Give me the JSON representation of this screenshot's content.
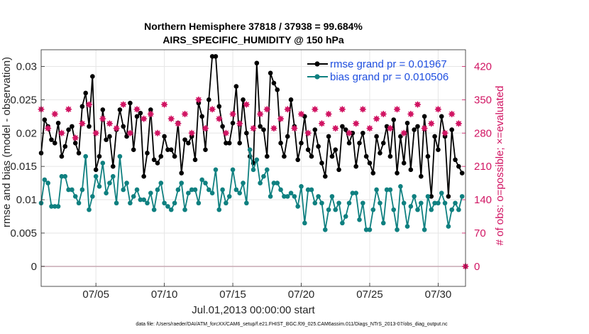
{
  "chart_data": {
    "type": "line",
    "title": "Northern Hemisphere 37818 / 37938 = 99.684%",
    "subtitle": "AIRS_SPECIFIC_HUMIDITY @ 150 hPa",
    "xlabel": "Jul.01,2013 00:00:00 start",
    "ylabel": "rmse and bias (model - observation)",
    "y2label": "# of obs: o=possible; ×=evaluated",
    "xlim": [
      1.0,
      32.0
    ],
    "ylim": [
      -0.003,
      0.0325
    ],
    "y2lim": [
      -42,
      455
    ],
    "x_ticks": [
      {
        "value": 5,
        "label": "07/05"
      },
      {
        "value": 10,
        "label": "07/10"
      },
      {
        "value": 15,
        "label": "07/15"
      },
      {
        "value": 20,
        "label": "07/20"
      },
      {
        "value": 25,
        "label": "07/25"
      },
      {
        "value": 30,
        "label": "07/30"
      }
    ],
    "y_ticks": [
      {
        "value": 0,
        "label": "0"
      },
      {
        "value": 0.005,
        "label": "0.005"
      },
      {
        "value": 0.01,
        "label": "0.01"
      },
      {
        "value": 0.015,
        "label": "0.015"
      },
      {
        "value": 0.02,
        "label": "0.02"
      },
      {
        "value": 0.025,
        "label": "0.025"
      },
      {
        "value": 0.03,
        "label": "0.03"
      }
    ],
    "y2_ticks": [
      {
        "value": 0,
        "label": "0"
      },
      {
        "value": 70,
        "label": "70"
      },
      {
        "value": 140,
        "label": "140"
      },
      {
        "value": 210,
        "label": "210"
      },
      {
        "value": 280,
        "label": "280"
      },
      {
        "value": 350,
        "label": "350"
      },
      {
        "value": 420,
        "label": "420"
      }
    ],
    "legend": {
      "position": "top-right",
      "rmse_label": "rmse grand pr = 0.01967",
      "bias_label": "bias grand pr = 0.010506"
    },
    "footer": "data file: /Users/raeder/DAI/ATM_forcXX/CAM6_setup/f.e21.FHIST_BGC.f09_025.CAM6assim.011/Diags_NTrS_2013-07/obs_diag_output.nc",
    "colors": {
      "rmse": "#000000",
      "bias": "#0f8080",
      "obs": "#d11563",
      "axis": "#262626",
      "grid": "#e6e6e6",
      "zero_line": "#c8a9b3",
      "legend_text": "#1f4fe0"
    },
    "series": [
      {
        "name": "rmse",
        "x": [
          1.0,
          1.25,
          1.5,
          1.75,
          2.0,
          2.25,
          2.5,
          2.75,
          3.0,
          3.25,
          3.5,
          3.75,
          4.0,
          4.25,
          4.5,
          4.75,
          5.0,
          5.25,
          5.5,
          5.75,
          6.0,
          6.25,
          6.5,
          6.75,
          7.0,
          7.25,
          7.5,
          7.75,
          8.0,
          8.25,
          8.5,
          8.75,
          9.0,
          9.25,
          9.5,
          9.75,
          10.0,
          10.25,
          10.5,
          10.75,
          11.0,
          11.25,
          11.5,
          11.75,
          12.0,
          12.25,
          12.5,
          12.75,
          13.0,
          13.25,
          13.5,
          13.75,
          14.0,
          14.25,
          14.5,
          14.75,
          15.0,
          15.25,
          15.5,
          15.75,
          16.0,
          16.25,
          16.5,
          16.75,
          17.0,
          17.25,
          17.5,
          17.75,
          18.0,
          18.25,
          18.5,
          18.75,
          19.0,
          19.25,
          19.5,
          19.75,
          20.0,
          20.25,
          20.5,
          20.75,
          21.0,
          21.25,
          21.5,
          21.75,
          22.0,
          22.25,
          22.5,
          22.75,
          23.0,
          23.25,
          23.5,
          23.75,
          24.0,
          24.25,
          24.5,
          24.75,
          25.0,
          25.25,
          25.5,
          25.75,
          26.0,
          26.25,
          26.5,
          26.75,
          27.0,
          27.25,
          27.5,
          27.75,
          28.0,
          28.25,
          28.5,
          28.75,
          29.0,
          29.25,
          29.5,
          29.75,
          30.0,
          30.25,
          30.5,
          30.75,
          31.0,
          31.25,
          31.5,
          31.75
        ],
        "values": [
          0.017,
          0.022,
          0.021,
          0.019,
          0.0185,
          0.0215,
          0.0165,
          0.018,
          0.0205,
          0.021,
          0.0185,
          0.017,
          0.024,
          0.026,
          0.021,
          0.0285,
          0.0145,
          0.0165,
          0.0235,
          0.019,
          0.0195,
          0.015,
          0.0205,
          0.0235,
          0.021,
          0.0195,
          0.0245,
          0.0175,
          0.0225,
          0.023,
          0.0135,
          0.017,
          0.0235,
          0.016,
          0.0155,
          0.0165,
          0.0195,
          0.0175,
          0.0175,
          0.0165,
          0.0215,
          0.014,
          0.019,
          0.0185,
          0.0195,
          0.016,
          0.0245,
          0.0225,
          0.0175,
          0.025,
          0.0315,
          0.0315,
          0.024,
          0.021,
          0.0185,
          0.0185,
          0.0215,
          0.027,
          0.0185,
          0.025,
          0.02,
          0.0165,
          0.0155,
          0.0305,
          0.021,
          0.0205,
          0.0165,
          0.029,
          0.0275,
          0.0265,
          0.0185,
          0.0165,
          0.0195,
          0.025,
          0.021,
          0.016,
          0.0185,
          0.0225,
          0.0175,
          0.0165,
          0.0205,
          0.018,
          0.0155,
          0.0135,
          0.0195,
          0.0165,
          0.0175,
          0.0145,
          0.021,
          0.0205,
          0.0185,
          0.02,
          0.015,
          0.0185,
          0.02,
          0.0165,
          0.0155,
          0.014,
          0.0195,
          0.017,
          0.0185,
          0.021,
          0.0165,
          0.022,
          0.014,
          0.0195,
          0.0155,
          0.0215,
          0.0145,
          0.0205,
          0.021,
          0.0135,
          0.0225,
          0.0165,
          0.0105,
          0.0195,
          0.0175,
          0.0225,
          0.0195,
          0.0105,
          0.0205,
          0.016,
          0.015,
          0.014
        ]
      },
      {
        "name": "bias",
        "x": [
          1.0,
          1.25,
          1.5,
          1.75,
          2.0,
          2.25,
          2.5,
          2.75,
          3.0,
          3.25,
          3.5,
          3.75,
          4.0,
          4.25,
          4.5,
          4.75,
          5.0,
          5.25,
          5.5,
          5.75,
          6.0,
          6.25,
          6.5,
          6.75,
          7.0,
          7.25,
          7.5,
          7.75,
          8.0,
          8.25,
          8.5,
          8.75,
          9.0,
          9.25,
          9.5,
          9.75,
          10.0,
          10.25,
          10.5,
          10.75,
          11.0,
          11.25,
          11.5,
          11.75,
          12.0,
          12.25,
          12.5,
          12.75,
          13.0,
          13.25,
          13.5,
          13.75,
          14.0,
          14.25,
          14.5,
          14.75,
          15.0,
          15.25,
          15.5,
          15.75,
          16.0,
          16.25,
          16.5,
          16.75,
          17.0,
          17.25,
          17.5,
          17.75,
          18.0,
          18.25,
          18.5,
          18.75,
          19.0,
          19.25,
          19.5,
          19.75,
          20.0,
          20.25,
          20.5,
          20.75,
          21.0,
          21.25,
          21.5,
          21.75,
          22.0,
          22.25,
          22.5,
          22.75,
          23.0,
          23.25,
          23.5,
          23.75,
          24.0,
          24.25,
          24.5,
          24.75,
          25.0,
          25.25,
          25.5,
          25.75,
          26.0,
          26.25,
          26.5,
          26.75,
          27.0,
          27.25,
          27.5,
          27.75,
          28.0,
          28.25,
          28.5,
          28.75,
          29.0,
          29.25,
          29.5,
          29.75,
          30.0,
          30.25,
          30.5,
          30.75,
          31.0,
          31.25,
          31.5,
          31.75
        ],
        "values": [
          0.0095,
          0.013,
          0.0125,
          0.009,
          0.009,
          0.009,
          0.0135,
          0.0135,
          0.0115,
          0.0115,
          0.0105,
          0.0095,
          0.0115,
          0.0165,
          0.0085,
          0.0105,
          0.0135,
          0.012,
          0.0155,
          0.011,
          0.0125,
          0.0135,
          0.0095,
          0.0165,
          0.0115,
          0.0125,
          0.0095,
          0.0105,
          0.0115,
          0.01,
          0.01,
          0.0095,
          0.011,
          0.0085,
          0.0115,
          0.0125,
          0.0095,
          0.009,
          0.0085,
          0.0095,
          0.0115,
          0.0125,
          0.0085,
          0.011,
          0.0115,
          0.0115,
          0.0095,
          0.013,
          0.0125,
          0.0115,
          0.011,
          0.0145,
          0.0085,
          0.0115,
          0.0095,
          0.0105,
          0.0145,
          0.0115,
          0.011,
          0.0125,
          0.0095,
          0.0175,
          0.0145,
          0.016,
          0.0125,
          0.0135,
          0.0145,
          0.0105,
          0.0125,
          0.0125,
          0.0115,
          0.0105,
          0.0105,
          0.011,
          0.0105,
          0.009,
          0.012,
          0.0065,
          0.0115,
          0.0115,
          0.0095,
          0.0105,
          0.0095,
          0.0055,
          0.0085,
          0.0105,
          0.0085,
          0.0095,
          0.0065,
          0.0075,
          0.0095,
          0.011,
          0.011,
          0.007,
          0.0095,
          0.0055,
          0.0055,
          0.0085,
          0.0115,
          0.0095,
          0.0065,
          0.0115,
          0.0115,
          0.0085,
          0.0055,
          0.012,
          0.0095,
          0.006,
          0.009,
          0.0105,
          0.0085,
          0.0095,
          0.0055,
          0.0105,
          0.0085,
          0.0095,
          0.0095,
          0.011,
          0.0095,
          0.006,
          0.0085,
          0.0095,
          0.0085,
          0.0105
        ]
      },
      {
        "name": "obs_possible_evaluated",
        "x": [
          1.0,
          1.5,
          2.0,
          2.5,
          3.0,
          3.5,
          4.0,
          4.5,
          5.0,
          5.5,
          6.0,
          6.5,
          7.0,
          7.5,
          8.0,
          8.5,
          9.0,
          9.5,
          10.0,
          10.5,
          11.0,
          11.5,
          12.0,
          12.5,
          13.0,
          13.5,
          14.0,
          14.5,
          15.0,
          15.5,
          16.0,
          16.5,
          17.0,
          17.5,
          18.0,
          18.5,
          19.0,
          19.5,
          20.0,
          20.5,
          21.0,
          21.5,
          22.0,
          22.5,
          23.0,
          23.5,
          24.0,
          24.5,
          25.0,
          25.5,
          26.0,
          26.5,
          27.0,
          27.5,
          28.0,
          28.5,
          29.0,
          29.5,
          30.0,
          30.5,
          31.0,
          31.5
        ],
        "values": [
          330,
          290,
          320,
          280,
          330,
          270,
          300,
          340,
          280,
          310,
          300,
          290,
          340,
          280,
          330,
          310,
          320,
          280,
          340,
          310,
          300,
          320,
          280,
          350,
          290,
          330,
          310,
          280,
          320,
          300,
          340,
          290,
          320,
          330,
          290,
          310,
          330,
          290,
          320,
          280,
          330,
          300,
          320,
          290,
          330,
          280,
          300,
          330,
          290,
          310,
          320,
          290,
          330,
          280,
          320,
          340,
          290,
          300,
          330,
          280,
          320,
          300
        ]
      },
      {
        "name": "obs_outliers",
        "x": [
          32.0
        ],
        "values": [
          0
        ]
      }
    ]
  }
}
